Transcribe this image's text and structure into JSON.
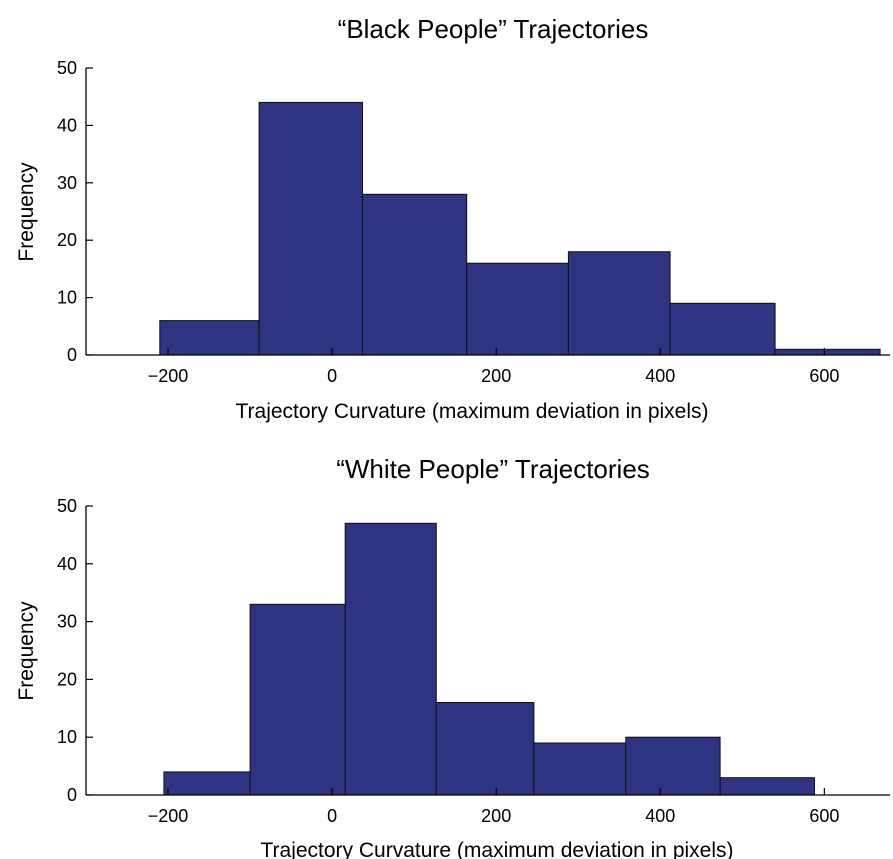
{
  "colors": {
    "bar_fill": "#2e3382",
    "bar_stroke": "#111111",
    "axis": "#000000"
  },
  "chart_data": [
    {
      "type": "bar",
      "title": "“Black People” Trajectories",
      "xlabel": "Trajectory Curvature (maximum deviation in pixels)",
      "ylabel": "Frequency",
      "xlim": [
        -300,
        680
      ],
      "ylim": [
        0,
        50
      ],
      "xticks": [
        -200,
        0,
        200,
        400,
        600
      ],
      "xtick_labels": [
        "−200",
        "0",
        "200",
        "400",
        "600"
      ],
      "yticks": [
        0,
        10,
        20,
        30,
        40,
        50
      ],
      "ytick_labels": [
        "0",
        "10",
        "20",
        "30",
        "40",
        "50"
      ],
      "bins": [
        {
          "x0": -210,
          "x1": -89,
          "value": 6
        },
        {
          "x0": -89,
          "x1": 37,
          "value": 44
        },
        {
          "x0": 37,
          "x1": 164,
          "value": 28
        },
        {
          "x0": 164,
          "x1": 288,
          "value": 16
        },
        {
          "x0": 288,
          "x1": 412,
          "value": 18
        },
        {
          "x0": 412,
          "x1": 540,
          "value": 9
        },
        {
          "x0": 540,
          "x1": 668,
          "value": 1
        }
      ],
      "grid": false
    },
    {
      "type": "bar",
      "title": "“White People” Trajectories",
      "xlabel": "Trajectory Curvature  (maximum deviation in pixels)",
      "ylabel": "Frequency",
      "xlim": [
        -300,
        680
      ],
      "ylim": [
        0,
        50
      ],
      "xticks": [
        -200,
        0,
        200,
        400,
        600
      ],
      "xtick_labels": [
        "−200",
        "0",
        "200",
        "400",
        "600"
      ],
      "yticks": [
        0,
        10,
        20,
        30,
        40,
        50
      ],
      "ytick_labels": [
        "0",
        "10",
        "20",
        "30",
        "40",
        "50"
      ],
      "bins": [
        {
          "x0": -205,
          "x1": -100,
          "value": 4
        },
        {
          "x0": -100,
          "x1": 16,
          "value": 33
        },
        {
          "x0": 16,
          "x1": 127,
          "value": 47
        },
        {
          "x0": 127,
          "x1": 246,
          "value": 16
        },
        {
          "x0": 246,
          "x1": 358,
          "value": 9
        },
        {
          "x0": 358,
          "x1": 473,
          "value": 10
        },
        {
          "x0": 473,
          "x1": 588,
          "value": 3
        }
      ],
      "grid": false
    }
  ]
}
